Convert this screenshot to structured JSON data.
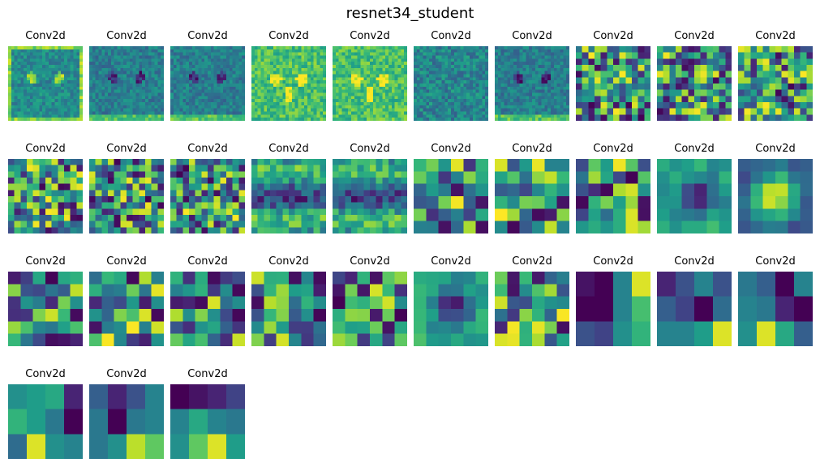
{
  "title": "resnet34_student",
  "colormap": "viridis",
  "chart_data": {
    "type": "heatmap",
    "title": "resnet34_student",
    "layer_type": "Conv2d",
    "panels": [
      {
        "title": "Conv2d",
        "resolution": 24,
        "pattern": "cat-bright-edges"
      },
      {
        "title": "Conv2d",
        "resolution": 24,
        "pattern": "cat-dark"
      },
      {
        "title": "Conv2d",
        "resolution": 24,
        "pattern": "cat-dark"
      },
      {
        "title": "Conv2d",
        "resolution": 24,
        "pattern": "cat-bright"
      },
      {
        "title": "Conv2d",
        "resolution": 24,
        "pattern": "cat-bright"
      },
      {
        "title": "Conv2d",
        "resolution": 24,
        "pattern": "cat-mid"
      },
      {
        "title": "Conv2d",
        "resolution": 24,
        "pattern": "cat-dark"
      },
      {
        "title": "Conv2d",
        "resolution": 12,
        "pattern": "noise"
      },
      {
        "title": "Conv2d",
        "resolution": 12,
        "pattern": "noise"
      },
      {
        "title": "Conv2d",
        "resolution": 12,
        "pattern": "noise"
      },
      {
        "title": "Conv2d",
        "resolution": 12,
        "pattern": "noise"
      },
      {
        "title": "Conv2d",
        "resolution": 12,
        "pattern": "noise"
      },
      {
        "title": "Conv2d",
        "resolution": 12,
        "pattern": "noise"
      },
      {
        "title": "Conv2d",
        "resolution": 12,
        "pattern": "blocks"
      },
      {
        "title": "Conv2d",
        "resolution": 12,
        "pattern": "blocks"
      },
      {
        "title": "Conv2d",
        "resolution": 6,
        "pattern": "noise"
      },
      {
        "title": "Conv2d",
        "resolution": 6,
        "pattern": "noise"
      },
      {
        "title": "Conv2d",
        "resolution": 6,
        "pattern": "noise"
      },
      {
        "title": "Conv2d",
        "resolution": 6,
        "pattern": "ring"
      },
      {
        "title": "Conv2d",
        "resolution": 6,
        "pattern": "center"
      },
      {
        "title": "Conv2d",
        "resolution": 6,
        "pattern": "noise"
      },
      {
        "title": "Conv2d",
        "resolution": 6,
        "pattern": "noise"
      },
      {
        "title": "Conv2d",
        "resolution": 6,
        "pattern": "noise"
      },
      {
        "title": "Conv2d",
        "resolution": 6,
        "pattern": "noise"
      },
      {
        "title": "Conv2d",
        "resolution": 6,
        "pattern": "noise"
      },
      {
        "title": "Conv2d",
        "resolution": 6,
        "pattern": "ring"
      },
      {
        "title": "Conv2d",
        "resolution": 6,
        "pattern": "noise"
      },
      {
        "title": "Conv2d",
        "resolution": 3,
        "values": [
          [
            0.05,
            0.0,
            0.45,
            0.95
          ],
          [
            0.0,
            0.0,
            0.45,
            0.7
          ],
          [
            0.25,
            0.2,
            0.5,
            0.65
          ]
        ]
      },
      {
        "title": "Conv2d",
        "resolution": 3,
        "values": [
          [
            0.1,
            0.25,
            0.45,
            0.25
          ],
          [
            0.3,
            0.2,
            0.0,
            0.35
          ],
          [
            0.45,
            0.45,
            0.55,
            0.95
          ]
        ]
      },
      {
        "title": "Conv2d",
        "resolution": 3,
        "values": [
          [
            0.4,
            0.3,
            0.0,
            0.45
          ],
          [
            0.45,
            0.4,
            0.1,
            0.0
          ],
          [
            0.5,
            0.95,
            0.6,
            0.3
          ]
        ]
      },
      {
        "title": "Conv2d",
        "resolution": 3,
        "values": [
          [
            0.5,
            0.55,
            0.6,
            0.1
          ],
          [
            0.65,
            0.55,
            0.4,
            0.0
          ],
          [
            0.35,
            0.95,
            0.5,
            0.45
          ]
        ]
      },
      {
        "title": "Conv2d",
        "resolution": 3,
        "values": [
          [
            0.3,
            0.1,
            0.25,
            0.45
          ],
          [
            0.4,
            0.0,
            0.4,
            0.45
          ],
          [
            0.4,
            0.5,
            0.9,
            0.75
          ]
        ]
      },
      {
        "title": "Conv2d",
        "resolution": 3,
        "values": [
          [
            0.0,
            0.05,
            0.1,
            0.2
          ],
          [
            0.45,
            0.6,
            0.45,
            0.4
          ],
          [
            0.5,
            0.75,
            0.95,
            0.55
          ]
        ]
      }
    ]
  }
}
